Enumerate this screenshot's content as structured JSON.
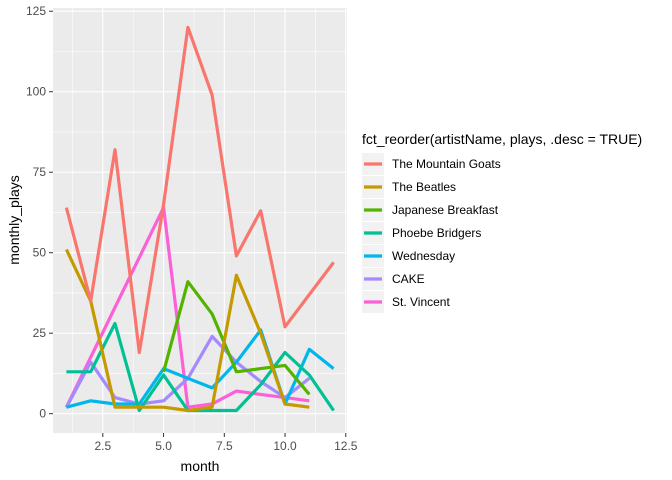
{
  "chart_data": {
    "type": "line",
    "xlabel": "month",
    "ylabel": "monthly_plays",
    "xlim": [
      0.45,
      12.55
    ],
    "ylim": [
      -6,
      126
    ],
    "x_ticks": [
      2.5,
      5.0,
      7.5,
      10.0,
      12.5
    ],
    "x_tick_labels": [
      "2.5",
      "5.0",
      "7.5",
      "10.0",
      "12.5"
    ],
    "y_ticks": [
      0,
      25,
      50,
      75,
      100,
      125
    ],
    "y_tick_labels": [
      "0",
      "25",
      "50",
      "75",
      "100",
      "125"
    ],
    "grid": true,
    "legend": {
      "title": "fct_reorder(artistName, plays, .desc = TRUE)",
      "position": "right"
    },
    "series": [
      {
        "name": "The Mountain Goats",
        "color": "#F8766D",
        "points": [
          [
            1,
            64
          ],
          [
            2,
            35
          ],
          [
            3,
            82
          ],
          [
            4,
            19
          ],
          [
            5,
            65
          ],
          [
            6,
            120
          ],
          [
            7,
            99
          ],
          [
            8,
            49
          ],
          [
            9,
            63
          ],
          [
            10,
            27
          ],
          [
            12,
            47
          ]
        ]
      },
      {
        "name": "The Beatles",
        "color": "#C49A00",
        "points": [
          [
            1,
            51
          ],
          [
            2,
            35
          ],
          [
            3,
            2
          ],
          [
            4,
            2
          ],
          [
            5,
            2
          ],
          [
            6,
            1
          ],
          [
            7,
            2
          ],
          [
            8,
            43
          ],
          [
            9,
            25
          ],
          [
            10,
            3
          ],
          [
            11,
            2
          ]
        ]
      },
      {
        "name": "Japanese Breakfast",
        "color": "#53B400",
        "points": [
          [
            5,
            13
          ],
          [
            6,
            41
          ],
          [
            7,
            31
          ],
          [
            8,
            13
          ],
          [
            9,
            14
          ],
          [
            10,
            15
          ],
          [
            11,
            6
          ]
        ]
      },
      {
        "name": "Phoebe Bridgers",
        "color": "#00C094",
        "points": [
          [
            1,
            13
          ],
          [
            2,
            13
          ],
          [
            3,
            28
          ],
          [
            4,
            1
          ],
          [
            5,
            12
          ],
          [
            6,
            1
          ],
          [
            7,
            1
          ],
          [
            8,
            1
          ],
          [
            9,
            9
          ],
          [
            10,
            19
          ],
          [
            11,
            12
          ],
          [
            12,
            1
          ]
        ]
      },
      {
        "name": "Wednesday",
        "color": "#00B6EB",
        "points": [
          [
            1,
            2
          ],
          [
            2,
            4
          ],
          [
            3,
            3
          ],
          [
            4,
            3
          ],
          [
            5,
            14
          ],
          [
            6,
            11
          ],
          [
            7,
            8
          ],
          [
            8,
            16
          ],
          [
            9,
            26
          ],
          [
            10,
            3
          ],
          [
            11,
            20
          ],
          [
            12,
            14
          ]
        ]
      },
      {
        "name": "CAKE",
        "color": "#A58AFF",
        "points": [
          [
            1,
            2
          ],
          [
            2,
            16
          ],
          [
            3,
            5
          ],
          [
            4,
            3
          ],
          [
            5,
            4
          ],
          [
            6,
            11
          ],
          [
            7,
            24
          ],
          [
            8,
            16
          ],
          [
            9,
            10
          ],
          [
            10,
            5
          ],
          [
            11,
            11
          ]
        ]
      },
      {
        "name": "St. Vincent",
        "color": "#FB61D7",
        "points": [
          [
            1,
            2
          ],
          [
            5,
            64
          ],
          [
            6,
            2
          ],
          [
            7,
            3
          ],
          [
            8,
            7
          ],
          [
            9,
            6
          ],
          [
            10,
            5
          ],
          [
            11,
            4
          ]
        ]
      }
    ]
  }
}
